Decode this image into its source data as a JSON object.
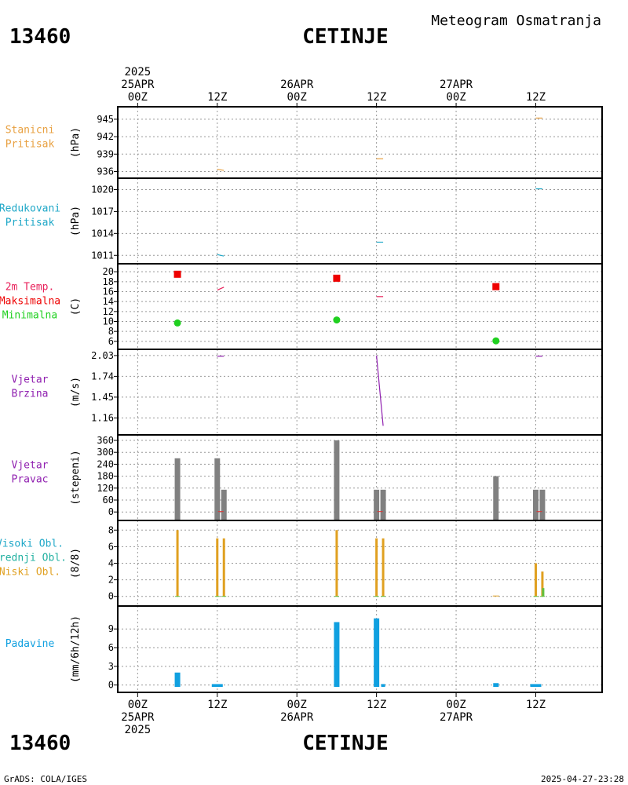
{
  "header": {
    "station_id": "13460",
    "station_name": "CETINJE",
    "subtitle": "Meteogram Osmatranja",
    "footer_left": "GrADS: COLA/IGES",
    "footer_right": "2025-04-27-23:28"
  },
  "time_axis": {
    "top_labels": [
      {
        "lines": [
          "2025",
          "25APR",
          "00Z"
        ],
        "hour": 0
      },
      {
        "lines": [
          "12Z"
        ],
        "hour": 12
      },
      {
        "lines": [
          "26APR",
          "00Z"
        ],
        "hour": 24
      },
      {
        "lines": [
          "12Z"
        ],
        "hour": 36
      },
      {
        "lines": [
          "27APR",
          "00Z"
        ],
        "hour": 48
      },
      {
        "lines": [
          "12Z"
        ],
        "hour": 60
      }
    ],
    "bottom_labels": [
      {
        "lines": [
          "00Z",
          "25APR",
          "2025"
        ],
        "hour": 0
      },
      {
        "lines": [
          "12Z"
        ],
        "hour": 12
      },
      {
        "lines": [
          "00Z",
          "26APR"
        ],
        "hour": 24
      },
      {
        "lines": [
          "12Z"
        ],
        "hour": 36
      },
      {
        "lines": [
          "00Z",
          "27APR"
        ],
        "hour": 48
      },
      {
        "lines": [
          "12Z"
        ],
        "hour": 60
      }
    ],
    "range_hours": [
      -3,
      70
    ]
  },
  "colors": {
    "pressure": "#e8a040",
    "reduced": "#20a8c8",
    "temp_label": "#e8205a",
    "max": "#ee0000",
    "min": "#20d020",
    "wind": "#9020b0",
    "bar_gray": "#808080",
    "high_cloud": "#20a8c8",
    "mid_cloud": "#20b0a0",
    "low_cloud": "#e0a020",
    "precip": "#10a0e0",
    "green": "#60c040"
  },
  "panels": [
    {
      "id": "stn-pressure",
      "labels": [
        "Stanicni",
        "Pritisak"
      ],
      "label_colors": [
        "#e8a040",
        "#e8a040"
      ],
      "unit": "(hPa)"
    },
    {
      "id": "red-pressure",
      "labels": [
        "Redukovani",
        "Pritisak"
      ],
      "label_colors": [
        "#20a8c8",
        "#20a8c8"
      ],
      "unit": "(hPa)"
    },
    {
      "id": "temperature",
      "labels": [
        "2m Temp.",
        "Maksimalna",
        "Minimalna"
      ],
      "label_colors": [
        "#e8205a",
        "#ee0000",
        "#20d020"
      ],
      "unit": "(C)"
    },
    {
      "id": "wind-speed",
      "labels": [
        "Vjetar",
        "Brzina"
      ],
      "label_colors": [
        "#9020b0",
        "#9020b0"
      ],
      "unit": "(m/s)"
    },
    {
      "id": "wind-dir",
      "labels": [
        "Vjetar",
        "Pravac"
      ],
      "label_colors": [
        "#9020b0",
        "#9020b0"
      ],
      "unit": "(stepeni)"
    },
    {
      "id": "clouds",
      "labels": [
        "Visoki Obl.",
        "Srednji Obl.",
        "Niski Obl."
      ],
      "label_colors": [
        "#20a8c8",
        "#20b0a0",
        "#e0a020"
      ],
      "unit": "(8/8)"
    },
    {
      "id": "precip",
      "labels": [
        "Padavine"
      ],
      "label_colors": [
        "#10a0e0"
      ],
      "unit": "(mm/6h/12h)"
    }
  ],
  "chart_data": [
    {
      "type": "line",
      "title": "Stanicni Pritisak",
      "ylabel": "(hPa)",
      "ylim": [
        935.8,
        946.2
      ],
      "yticks": [
        "936",
        "939",
        "942",
        "945"
      ],
      "series": [
        {
          "values_segments": [
            {
              "x": [
                12,
                13
              ],
              "y": [
                936.4,
                936.2
              ]
            },
            {
              "x": [
                36,
                37
              ],
              "y": [
                938.2,
                938.2
              ]
            },
            {
              "x": [
                60,
                61
              ],
              "y": [
                945.2,
                945.2
              ]
            }
          ]
        }
      ]
    },
    {
      "type": "line",
      "title": "Redukovani Pritisak",
      "ylabel": "(hPa)",
      "ylim": [
        1010.6,
        1020.8
      ],
      "yticks": [
        "1011",
        "1014",
        "1017",
        "1020"
      ],
      "series": [
        {
          "values_segments": [
            {
              "x": [
                12,
                13
              ],
              "y": [
                1011.1,
                1010.9
              ]
            },
            {
              "x": [
                36,
                37
              ],
              "y": [
                1012.8,
                1012.8
              ]
            },
            {
              "x": [
                60,
                61
              ],
              "y": [
                1020.1,
                1020.1
              ]
            }
          ]
        }
      ]
    },
    {
      "type": "scatter",
      "title": "2m Temp. Maksimalna Minimalna",
      "ylabel": "(C)",
      "ylim": [
        5.5,
        20.5
      ],
      "yticks": [
        "6",
        "8",
        "10",
        "12",
        "14",
        "16",
        "18",
        "20"
      ],
      "temp_segments": [
        {
          "x": [
            12,
            13
          ],
          "y": [
            16.3,
            16.9
          ]
        },
        {
          "x": [
            36,
            37
          ],
          "y": [
            15.0,
            15.0
          ]
        }
      ],
      "max": {
        "x": [
          6,
          30,
          54
        ],
        "y": [
          19.5,
          18.7,
          17.0
        ]
      },
      "min": {
        "x": [
          6,
          30,
          54
        ],
        "y": [
          9.7,
          10.3,
          6.1
        ]
      }
    },
    {
      "type": "line",
      "title": "Vjetar Brzina",
      "ylabel": "(m/s)",
      "ylim": [
        1.0,
        2.04
      ],
      "yticks": [
        "1.16",
        "1.45",
        "1.74",
        "2.03"
      ],
      "series": [
        {
          "values_segments": [
            {
              "x": [
                12,
                13
              ],
              "y": [
                2.02,
                2.02
              ]
            },
            {
              "x": [
                36,
                37
              ],
              "y": [
                2.03,
                1.05
              ]
            },
            {
              "x": [
                60,
                61
              ],
              "y": [
                2.02,
                2.02
              ]
            }
          ]
        }
      ]
    },
    {
      "type": "bar",
      "title": "Vjetar Pravac",
      "ylabel": "(stepeni)",
      "ylim": [
        -15,
        360
      ],
      "yticks": [
        "0",
        "60",
        "120",
        "180",
        "240",
        "300",
        "360"
      ],
      "bars": [
        {
          "x": 6,
          "value": 270
        },
        {
          "x": 12,
          "value": 270
        },
        {
          "x": 13,
          "value": 112
        },
        {
          "x": 30,
          "value": 360
        },
        {
          "x": 36,
          "value": 112
        },
        {
          "x": 37,
          "value": 112
        },
        {
          "x": 54,
          "value": 180
        },
        {
          "x": 60,
          "value": 112
        },
        {
          "x": 61,
          "value": 112
        }
      ]
    },
    {
      "type": "bar",
      "title": "Visoki Obl. Srednji Obl. Niski Obl.",
      "ylabel": "(8/8)",
      "ylim": [
        -0.5,
        8.5
      ],
      "yticks": [
        "0",
        "2",
        "4",
        "6",
        "8"
      ],
      "low_cloud": [
        {
          "x": 6,
          "value": 8
        },
        {
          "x": 12,
          "value": 7
        },
        {
          "x": 13,
          "value": 7
        },
        {
          "x": 30,
          "value": 8
        },
        {
          "x": 36,
          "value": 7
        },
        {
          "x": 37,
          "value": 7
        },
        {
          "x": 60,
          "value": 4
        },
        {
          "x": 61,
          "value": 3
        }
      ],
      "green_cloud": [
        {
          "x": 61,
          "value": 1
        }
      ]
    },
    {
      "type": "bar",
      "title": "Padavine",
      "ylabel": "(mm/6h/12h)",
      "ylim": [
        -0.3,
        11.8
      ],
      "yticks": [
        "0",
        "3",
        "6",
        "9"
      ],
      "bars": [
        {
          "x": 6,
          "value": 2.0,
          "w": 7
        },
        {
          "x": 12,
          "value": 0.15,
          "w": 14
        },
        {
          "x": 30,
          "value": 10.1,
          "w": 7
        },
        {
          "x": 36,
          "value": 10.7,
          "w": 7
        },
        {
          "x": 37,
          "value": 0.15,
          "w": 5
        },
        {
          "x": 54,
          "value": 0.3,
          "w": 7
        },
        {
          "x": 60,
          "value": 0.15,
          "w": 14
        }
      ]
    }
  ]
}
